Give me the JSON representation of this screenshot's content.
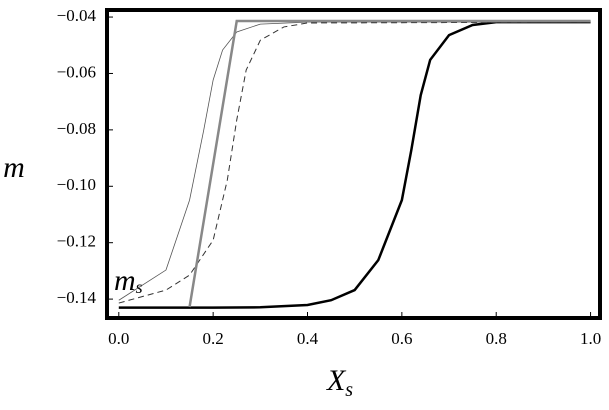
{
  "chart_data": {
    "type": "line",
    "ylabel": "m",
    "xlabel": "X",
    "xlabel_sub": "s",
    "annotation": "m",
    "annotation_sub": "s",
    "xlim": [
      -0.025,
      1.02
    ],
    "ylim": [
      -0.1467,
      -0.0375
    ],
    "xticks": [
      {
        "value": 0,
        "label": "0.0"
      },
      0.2,
      0.4,
      0.6,
      0.8,
      {
        "value": 1,
        "label": "1.0"
      }
    ],
    "yticks": [
      {
        "value": -0.04,
        "label": "−0.04"
      },
      {
        "value": -0.06,
        "label": "−0.06"
      },
      {
        "value": -0.08,
        "label": "−0.08"
      },
      {
        "value": -0.1,
        "label": "−0.10"
      },
      {
        "value": -0.12,
        "label": "−0.12"
      },
      {
        "value": -0.14,
        "label": "−0.14"
      }
    ],
    "series": [
      {
        "color": "#000000",
        "width": 2.5,
        "dash": false,
        "x": [
          0,
          0.1,
          0.2,
          0.3,
          0.4,
          0.45,
          0.5,
          0.55,
          0.6,
          0.62,
          0.64,
          0.66,
          0.7,
          0.75,
          0.8,
          0.9,
          1.0
        ],
        "values": [
          -0.143,
          -0.143,
          -0.143,
          -0.1429,
          -0.1421,
          -0.1404,
          -0.1368,
          -0.1262,
          -0.1049,
          -0.0872,
          -0.0677,
          -0.0552,
          -0.0464,
          -0.0428,
          -0.0418,
          -0.0418,
          -0.0418
        ]
      },
      {
        "color": "#555555",
        "width": 0.8,
        "dash": false,
        "x": [
          0,
          0.1,
          0.15,
          0.18,
          0.2,
          0.22,
          0.25,
          0.3,
          0.4,
          1.0
        ],
        "values": [
          -0.1404,
          -0.1297,
          -0.1049,
          -0.0801,
          -0.0623,
          -0.0517,
          -0.0453,
          -0.0425,
          -0.0418,
          -0.0418
        ]
      },
      {
        "color": "#333333",
        "width": 1,
        "dash": true,
        "x": [
          0,
          0.1,
          0.15,
          0.2,
          0.23,
          0.25,
          0.27,
          0.3,
          0.35,
          0.4,
          1.0
        ],
        "values": [
          -0.1414,
          -0.1368,
          -0.1315,
          -0.1191,
          -0.0978,
          -0.0765,
          -0.0588,
          -0.0482,
          -0.0435,
          -0.0421,
          -0.0418
        ]
      },
      {
        "color": "#888888",
        "width": 2.5,
        "dash": false,
        "x": [
          0.15,
          0.25,
          1.0
        ],
        "values": [
          -0.1428,
          -0.0414,
          -0.0414
        ]
      }
    ]
  }
}
